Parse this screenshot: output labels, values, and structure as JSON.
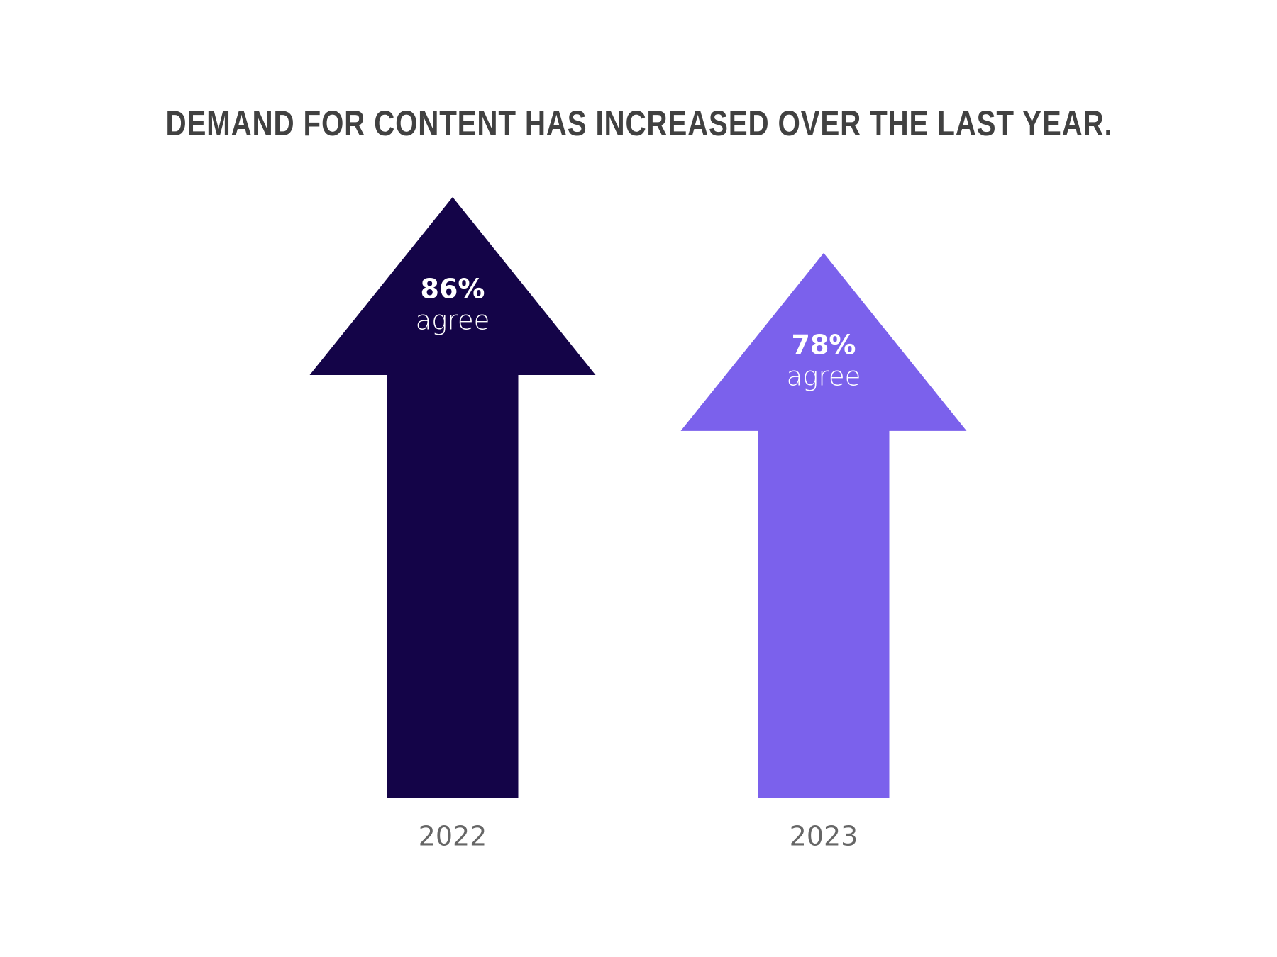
{
  "chart_data": {
    "type": "arrow-bar",
    "title": "DEMAND FOR CONTENT HAS INCREASED OVER THE LAST YEAR.",
    "categories": [
      "2022",
      "2023"
    ],
    "values": [
      86,
      78
    ],
    "value_labels": [
      "86%",
      "78%"
    ],
    "value_unit_label": "agree",
    "colors": [
      "#140448",
      "#7b61ec"
    ]
  }
}
